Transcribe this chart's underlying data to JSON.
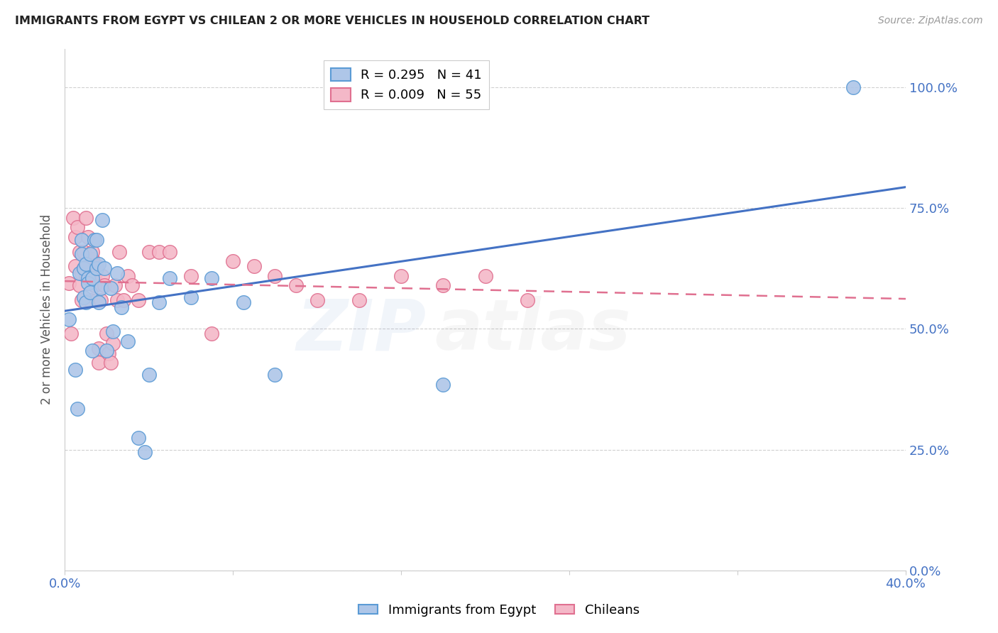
{
  "title": "IMMIGRANTS FROM EGYPT VS CHILEAN 2 OR MORE VEHICLES IN HOUSEHOLD CORRELATION CHART",
  "source": "Source: ZipAtlas.com",
  "ylabel": "2 or more Vehicles in Household",
  "ytick_labels": [
    "0.0%",
    "25.0%",
    "50.0%",
    "75.0%",
    "100.0%"
  ],
  "ytick_values": [
    0.0,
    0.25,
    0.5,
    0.75,
    1.0
  ],
  "xmin": 0.0,
  "xmax": 0.4,
  "ymin": 0.0,
  "ymax": 1.08,
  "legend_entry1": "R = 0.295   N = 41",
  "legend_entry2": "R = 0.009   N = 55",
  "watermark_zip": "ZIP",
  "watermark_atlas": "atlas",
  "egypt_color": "#aec6e8",
  "egypt_edge_color": "#5b9bd5",
  "chilean_color": "#f4b8c8",
  "chilean_edge_color": "#e07090",
  "trend_egypt_color": "#4472c4",
  "trend_chilean_color": "#e07090",
  "egypt_x": [
    0.002,
    0.005,
    0.006,
    0.007,
    0.008,
    0.008,
    0.009,
    0.009,
    0.01,
    0.01,
    0.011,
    0.011,
    0.012,
    0.012,
    0.013,
    0.013,
    0.014,
    0.015,
    0.015,
    0.016,
    0.016,
    0.017,
    0.018,
    0.019,
    0.02,
    0.022,
    0.023,
    0.025,
    0.027,
    0.03,
    0.035,
    0.038,
    0.04,
    0.045,
    0.05,
    0.06,
    0.07,
    0.085,
    0.1,
    0.18,
    0.375
  ],
  "egypt_y": [
    0.52,
    0.415,
    0.335,
    0.615,
    0.655,
    0.685,
    0.565,
    0.625,
    0.635,
    0.555,
    0.605,
    0.595,
    0.575,
    0.655,
    0.455,
    0.605,
    0.685,
    0.625,
    0.685,
    0.635,
    0.555,
    0.585,
    0.725,
    0.625,
    0.455,
    0.585,
    0.495,
    0.615,
    0.545,
    0.475,
    0.275,
    0.245,
    0.405,
    0.555,
    0.605,
    0.565,
    0.605,
    0.555,
    0.405,
    0.385,
    1.0
  ],
  "chilean_x": [
    0.002,
    0.003,
    0.004,
    0.005,
    0.005,
    0.006,
    0.007,
    0.007,
    0.008,
    0.008,
    0.009,
    0.009,
    0.01,
    0.01,
    0.011,
    0.011,
    0.012,
    0.012,
    0.013,
    0.013,
    0.014,
    0.014,
    0.015,
    0.015,
    0.016,
    0.016,
    0.017,
    0.018,
    0.019,
    0.02,
    0.021,
    0.022,
    0.023,
    0.024,
    0.025,
    0.026,
    0.028,
    0.03,
    0.032,
    0.035,
    0.04,
    0.045,
    0.05,
    0.06,
    0.07,
    0.08,
    0.09,
    0.1,
    0.11,
    0.12,
    0.14,
    0.16,
    0.18,
    0.2,
    0.22
  ],
  "chilean_y": [
    0.595,
    0.49,
    0.73,
    0.63,
    0.69,
    0.71,
    0.66,
    0.59,
    0.615,
    0.56,
    0.625,
    0.66,
    0.73,
    0.61,
    0.625,
    0.69,
    0.61,
    0.56,
    0.645,
    0.66,
    0.59,
    0.61,
    0.63,
    0.56,
    0.46,
    0.43,
    0.56,
    0.61,
    0.59,
    0.49,
    0.45,
    0.43,
    0.47,
    0.59,
    0.56,
    0.66,
    0.56,
    0.61,
    0.59,
    0.56,
    0.66,
    0.66,
    0.66,
    0.61,
    0.49,
    0.64,
    0.63,
    0.61,
    0.59,
    0.56,
    0.56,
    0.61,
    0.59,
    0.61,
    0.56
  ]
}
